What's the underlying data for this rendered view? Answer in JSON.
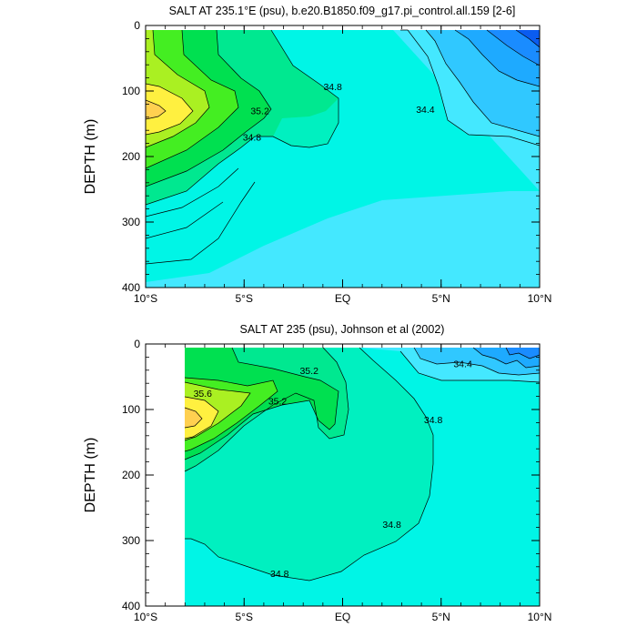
{
  "chart_data": [
    {
      "type": "contour",
      "title": "SALT AT 235.1°E (psu), b.e20.B1850.f09_g17.pi_control.all.159 [2-6]",
      "ylabel": "DEPTH (m)",
      "xlim": [
        -10,
        10
      ],
      "ylim": [
        400,
        0
      ],
      "xticks": [
        {
          "value": -10,
          "label": "10°S"
        },
        {
          "value": -5,
          "label": "5°S"
        },
        {
          "value": 0,
          "label": "EQ"
        },
        {
          "value": 5,
          "label": "5°N"
        },
        {
          "value": 10,
          "label": "10°N"
        }
      ],
      "yticks": [
        {
          "value": 0,
          "label": "0"
        },
        {
          "value": 100,
          "label": "100"
        },
        {
          "value": 200,
          "label": "200"
        },
        {
          "value": 300,
          "label": "300"
        },
        {
          "value": 400,
          "label": "400"
        }
      ],
      "contour_labels": [
        {
          "lat": -4.2,
          "depth": 130,
          "text": "35.2"
        },
        {
          "lat": -4.6,
          "depth": 170,
          "text": "34.8"
        },
        {
          "lat": -0.5,
          "depth": 93,
          "text": "34.8"
        },
        {
          "lat": 4.2,
          "depth": 128,
          "text": "34.4"
        }
      ],
      "colors": {
        "s34_0": "#0a5cf0",
        "s34_1": "#1a8cff",
        "s34_2": "#1eaaff",
        "s34_3": "#30c8ff",
        "s34_4": "#44e8ff",
        "s34_6": "#00f5e6",
        "s34_8": "#00f0c0",
        "s35_0": "#00e890",
        "s35_2": "#00e050",
        "s35_4": "#44ee22",
        "s35_6": "#aaf022",
        "s35_8": "#fff040",
        "s36_0": "#ffd050"
      }
    },
    {
      "type": "contour",
      "title": "SALT AT 235 (psu), Johnson et al (2002)",
      "ylabel": "DEPTH (m)",
      "xlim": [
        -10,
        10
      ],
      "ylim": [
        400,
        0
      ],
      "data_lat_range": [
        -8,
        10
      ],
      "data_depth_range": [
        5,
        400
      ],
      "xticks": [
        {
          "value": -10,
          "label": "10°S"
        },
        {
          "value": -5,
          "label": "5°S"
        },
        {
          "value": 0,
          "label": "EQ"
        },
        {
          "value": 5,
          "label": "5°N"
        },
        {
          "value": 10,
          "label": "10°N"
        }
      ],
      "yticks": [
        {
          "value": 0,
          "label": "0"
        },
        {
          "value": 100,
          "label": "100"
        },
        {
          "value": 200,
          "label": "200"
        },
        {
          "value": 300,
          "label": "300"
        },
        {
          "value": 400,
          "label": "400"
        }
      ],
      "contour_labels": [
        {
          "lat": -7.1,
          "depth": 75,
          "text": "35.6"
        },
        {
          "lat": -3.3,
          "depth": 87,
          "text": "35.2"
        },
        {
          "lat": -1.7,
          "depth": 40,
          "text": "35.2"
        },
        {
          "lat": 4.6,
          "depth": 115,
          "text": "34.8"
        },
        {
          "lat": 2.5,
          "depth": 275,
          "text": "34.8"
        },
        {
          "lat": -3.2,
          "depth": 350,
          "text": "34.8"
        },
        {
          "lat": 6.1,
          "depth": 30,
          "text": "34.4"
        }
      ]
    }
  ]
}
